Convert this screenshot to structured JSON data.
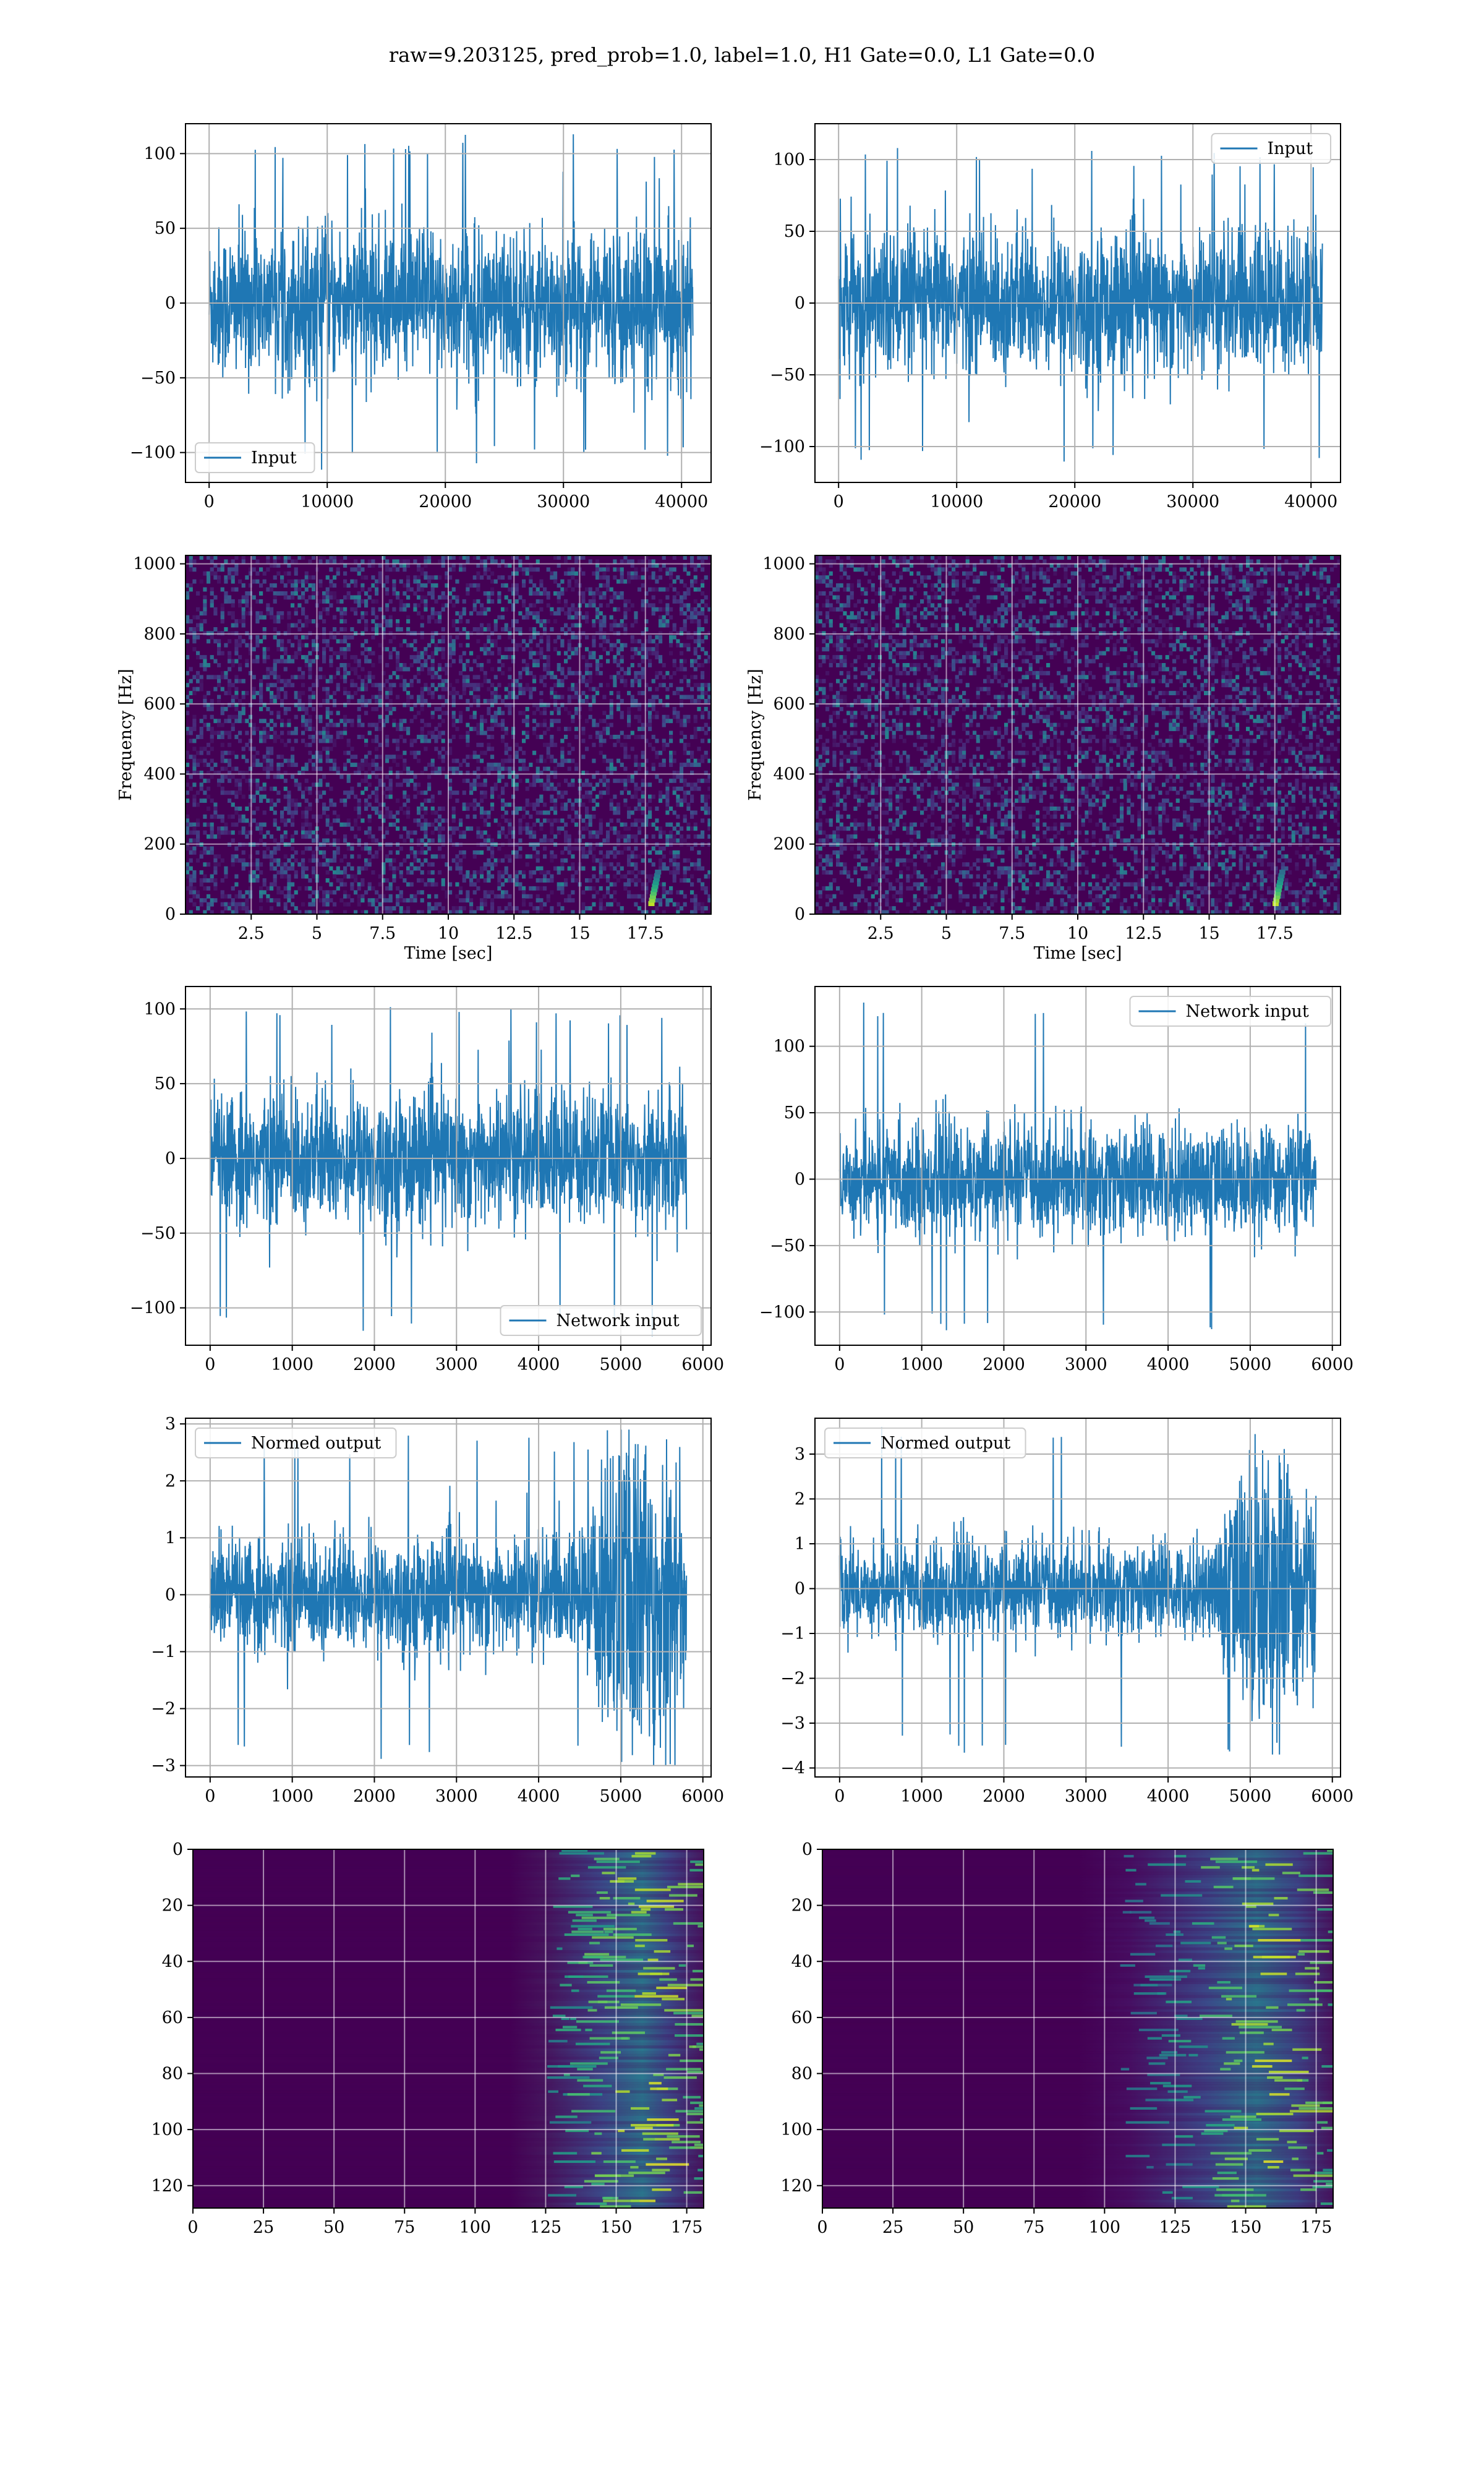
{
  "figure": {
    "suptitle": "raw=9.203125, pred_prob=1.0, label=1.0, H1 Gate=0.0, L1 Gate=0.0"
  },
  "colors": {
    "line": "#1f77b4",
    "viridis_low": "#440154",
    "viridis_high": "#fde725",
    "grid": "#b0b0b0"
  },
  "chart_data": [
    {
      "id": "input-h1",
      "type": "line",
      "xlim": [
        -2000,
        42500
      ],
      "ylim": [
        -120,
        120
      ],
      "xticks": [
        0,
        10000,
        20000,
        30000,
        40000
      ],
      "yticks": [
        -100,
        -50,
        0,
        50,
        100
      ],
      "series": [
        {
          "name": "Input",
          "n_samples": 40960,
          "amplitude_std": 25,
          "max": 113,
          "min": -112
        }
      ],
      "xlabel": "",
      "ylabel": "",
      "grid": true,
      "legend": "lower-left"
    },
    {
      "id": "input-l1",
      "type": "line",
      "xlim": [
        -2000,
        42500
      ],
      "ylim": [
        -125,
        125
      ],
      "xticks": [
        0,
        10000,
        20000,
        30000,
        40000
      ],
      "yticks": [
        -100,
        -50,
        0,
        50,
        100
      ],
      "series": [
        {
          "name": "Input",
          "n_samples": 40960,
          "amplitude_std": 25,
          "max": 110,
          "min": -115
        }
      ],
      "xlabel": "",
      "ylabel": "",
      "grid": true,
      "legend": "upper-right"
    },
    {
      "id": "spectrogram-h1",
      "type": "heatmap",
      "xlim": [
        0,
        20
      ],
      "ylim": [
        0,
        1024
      ],
      "xticks": [
        2.5,
        5.0,
        7.5,
        10.0,
        12.5,
        15.0,
        17.5
      ],
      "yticks": [
        0,
        200,
        400,
        600,
        800,
        1000
      ],
      "xlabel": "Time [sec]",
      "ylabel": "Frequency [Hz]",
      "colormap": "viridis",
      "grid": true,
      "feature": {
        "type": "chirp",
        "time_sec": 17.8,
        "freq_hz": [
          30,
          120
        ]
      }
    },
    {
      "id": "spectrogram-l1",
      "type": "heatmap",
      "xlim": [
        0,
        20
      ],
      "ylim": [
        0,
        1024
      ],
      "xticks": [
        2.5,
        5.0,
        7.5,
        10.0,
        12.5,
        15.0,
        17.5
      ],
      "yticks": [
        0,
        200,
        400,
        600,
        800,
        1000
      ],
      "xlabel": "Time [sec]",
      "ylabel": "Frequency [Hz]",
      "colormap": "viridis",
      "grid": true,
      "feature": {
        "type": "chirp",
        "time_sec": 17.6,
        "freq_hz": [
          30,
          120
        ]
      }
    },
    {
      "id": "network-input-h1",
      "type": "line",
      "xlim": [
        -300,
        6100
      ],
      "ylim": [
        -125,
        115
      ],
      "xticks": [
        0,
        1000,
        2000,
        3000,
        4000,
        5000,
        6000
      ],
      "yticks": [
        -100,
        -50,
        0,
        50,
        100
      ],
      "series": [
        {
          "name": "Network input",
          "n_samples": 5800,
          "amplitude_std": 22,
          "max": 105,
          "min": -120
        }
      ],
      "xlabel": "",
      "ylabel": "",
      "grid": true,
      "legend": "lower-right"
    },
    {
      "id": "network-input-l1",
      "type": "line",
      "xlim": [
        -300,
        6100
      ],
      "ylim": [
        -125,
        145
      ],
      "xticks": [
        0,
        1000,
        2000,
        3000,
        4000,
        5000,
        6000
      ],
      "yticks": [
        -100,
        -50,
        0,
        50,
        100
      ],
      "series": [
        {
          "name": "Network input",
          "n_samples": 5800,
          "amplitude_std": 20,
          "max": 133,
          "min": -115
        }
      ],
      "xlabel": "",
      "ylabel": "",
      "grid": true,
      "legend": "upper-right"
    },
    {
      "id": "normed-output-h1",
      "type": "line",
      "xlim": [
        -300,
        6100
      ],
      "ylim": [
        -3.2,
        3.1
      ],
      "xticks": [
        0,
        1000,
        2000,
        3000,
        4000,
        5000,
        6000
      ],
      "yticks": [
        -3,
        -2,
        -1,
        0,
        1,
        2,
        3
      ],
      "series": [
        {
          "name": "Normed output",
          "n_samples": 5800,
          "amplitude_std": 0.5,
          "max": 2.9,
          "min": -3.0,
          "feature": {
            "type": "chirp-burst",
            "x_range": [
              4500,
              5800
            ]
          }
        }
      ],
      "xlabel": "",
      "ylabel": "",
      "grid": true,
      "legend": "upper-left"
    },
    {
      "id": "normed-output-l1",
      "type": "line",
      "xlim": [
        -300,
        6100
      ],
      "ylim": [
        -4.2,
        3.8
      ],
      "xticks": [
        0,
        1000,
        2000,
        3000,
        4000,
        5000,
        6000
      ],
      "yticks": [
        -4,
        -3,
        -2,
        -1,
        0,
        1,
        2,
        3
      ],
      "series": [
        {
          "name": "Normed output",
          "n_samples": 5800,
          "amplitude_std": 0.5,
          "max": 3.6,
          "min": -3.7,
          "feature": {
            "type": "chirp-burst",
            "x_range": [
              4500,
              5800
            ]
          }
        }
      ],
      "xlabel": "",
      "ylabel": "",
      "grid": true,
      "legend": "upper-left"
    },
    {
      "id": "feature-map-h1",
      "type": "heatmap",
      "xlim": [
        0,
        181
      ],
      "ylim": [
        128,
        0
      ],
      "xticks": [
        0,
        25,
        50,
        75,
        100,
        125,
        150,
        175
      ],
      "yticks": [
        0,
        20,
        40,
        60,
        80,
        100,
        120
      ],
      "xlabel": "",
      "ylabel": "",
      "colormap": "viridis",
      "grid": true,
      "feature": {
        "active_from_col": 125,
        "peak_col": 158
      }
    },
    {
      "id": "feature-map-l1",
      "type": "heatmap",
      "xlim": [
        0,
        181
      ],
      "ylim": [
        128,
        0
      ],
      "xticks": [
        0,
        25,
        50,
        75,
        100,
        125,
        150,
        175
      ],
      "yticks": [
        0,
        20,
        40,
        60,
        80,
        100,
        120
      ],
      "xlabel": "",
      "ylabel": "",
      "colormap": "viridis",
      "grid": true,
      "feature": {
        "active_from_col": 105,
        "peak_col": 155
      }
    }
  ]
}
